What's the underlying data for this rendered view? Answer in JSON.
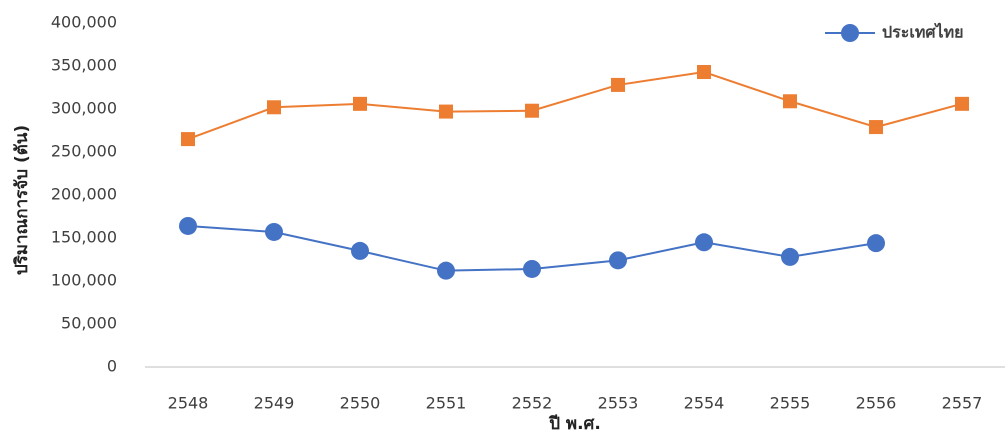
{
  "chart_data": {
    "type": "line",
    "x_label": "ปี พ.ศ.",
    "y_label": "ปริมาณการจับ (ตัน)",
    "categories": [
      "2548",
      "2549",
      "2550",
      "2551",
      "2552",
      "2553",
      "2554",
      "2555",
      "2556",
      "2557"
    ],
    "series": [
      {
        "name": "ประเทศไทย",
        "color": "#4472c4",
        "marker": "circle",
        "values": [
          164000,
          157000,
          135000,
          112000,
          114000,
          124000,
          145000,
          128000,
          144000,
          null
        ]
      },
      {
        "color": "#ed7d31",
        "marker": "square",
        "values": [
          265000,
          302000,
          306000,
          297000,
          298000,
          328000,
          343000,
          309000,
          279000,
          306000
        ]
      }
    ],
    "ylim": [
      0,
      400000
    ],
    "yticks": [
      0,
      {
        "value": 50000,
        "label": "50,000"
      },
      {
        "value": 100000,
        "label": "100,000"
      },
      {
        "value": 150000,
        "label": "150,000"
      },
      {
        "value": 200000,
        "label": "200,000"
      },
      {
        "value": 250000,
        "label": "250,000"
      },
      {
        "value": 300000,
        "label": "300,000"
      },
      {
        "value": 350000,
        "label": "350,000"
      },
      {
        "value": 400000,
        "label": "400,000"
      }
    ],
    "grid": false,
    "legend": "top-right"
  }
}
